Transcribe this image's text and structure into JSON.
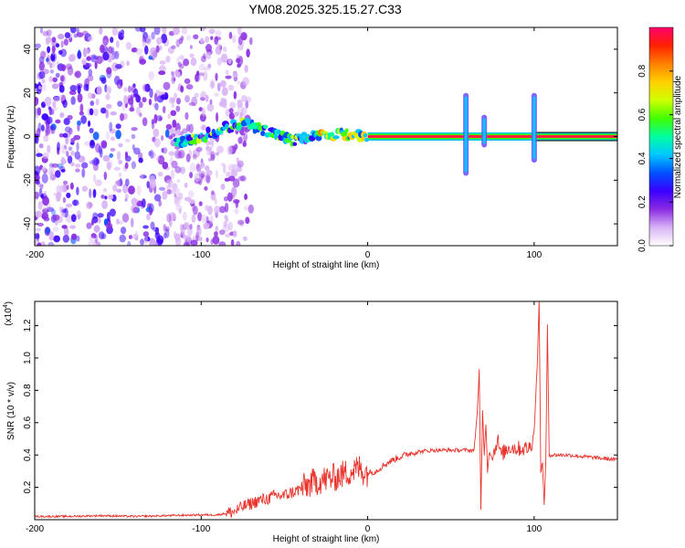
{
  "figure_title": "YM08.2025.325.15.27.C33",
  "chart_data": [
    {
      "type": "heatmap",
      "title": "YM08.2025.325.15.27.C33",
      "xlabel": "Height of straight line (km)",
      "ylabel": "Frequency (Hz)",
      "xlim": [
        -200,
        150
      ],
      "ylim": [
        -50,
        50
      ],
      "xticks": [
        -200,
        -100,
        0,
        100
      ],
      "xtick_labels": [
        "-200",
        "-100",
        "0",
        "100"
      ],
      "yticks": [
        -40,
        -20,
        0,
        20,
        40
      ],
      "ytick_labels": [
        "-40",
        "-20",
        "0",
        "20",
        "40"
      ],
      "colorbar": {
        "label": "Normalized spectral amplitude",
        "range": [
          0,
          1
        ],
        "ticks": [
          0,
          0.2,
          0.4,
          0.6,
          0.8
        ],
        "tick_labels": [
          "0.0",
          "0.2",
          "0.4",
          "0.6",
          "0.8"
        ],
        "colors": [
          "#ffffff",
          "#d9b3f5",
          "#8a2be2",
          "#3a00ff",
          "#0050ff",
          "#00c8ff",
          "#00ffa0",
          "#40ff00",
          "#d0ff00",
          "#ffd000",
          "#ff8000",
          "#ff2000",
          "#ff0070"
        ]
      },
      "features": [
        {
          "name": "diffuse noise",
          "x_range": [
            -200,
            -80
          ],
          "freq_range": [
            -50,
            50
          ],
          "amplitude": 0.15
        },
        {
          "name": "central track",
          "x": [
            -115,
            -100,
            -85,
            -75,
            -65,
            -55,
            -45,
            -35,
            -25,
            -15,
            -8,
            0,
            150
          ],
          "freq": [
            -3,
            0,
            4,
            6,
            4,
            1,
            -2,
            0,
            0,
            1,
            1,
            0,
            0
          ]
        },
        {
          "name": "spike",
          "x": 59,
          "freq_range": [
            -18,
            20
          ]
        },
        {
          "name": "spike",
          "x": 70,
          "freq_range": [
            -5,
            10
          ]
        },
        {
          "name": "spike",
          "x": 100,
          "freq_range": [
            -12,
            20
          ]
        }
      ]
    },
    {
      "type": "line",
      "title": "",
      "xlabel": "Height of straight line (km)",
      "ylabel": "SNR (10 * v/v)",
      "scale_label": "(x10",
      "scale_exponent": "4",
      "xlim": [
        -200,
        150
      ],
      "ylim": [
        0,
        1.35
      ],
      "xticks": [
        -200,
        -100,
        0,
        100
      ],
      "xtick_labels": [
        "-200",
        "-100",
        "0",
        "100"
      ],
      "yticks": [
        0.2,
        0.4,
        0.6,
        0.8,
        1.0,
        1.2
      ],
      "ytick_labels": [
        "0.2",
        "0.4",
        "0.6",
        "0.8",
        "1.0",
        "1.2"
      ],
      "color": "#e8342c",
      "series": [
        {
          "name": "SNR",
          "x": [
            -200,
            -180,
            -160,
            -140,
            -120,
            -100,
            -90,
            -80,
            -75,
            -70,
            -65,
            -60,
            -55,
            -50,
            -45,
            -40,
            -35,
            -30,
            -25,
            -20,
            -15,
            -10,
            -7,
            -5,
            -3,
            0,
            5,
            10,
            15,
            20,
            25,
            30,
            40,
            50,
            60,
            64,
            66,
            67,
            68,
            69,
            70,
            71,
            72,
            73,
            75,
            78,
            80,
            85,
            90,
            95,
            98,
            100,
            102,
            103,
            104,
            105,
            106,
            107,
            108,
            109,
            110,
            112,
            120,
            130,
            140,
            150
          ],
          "y": [
            0.02,
            0.02,
            0.025,
            0.02,
            0.025,
            0.03,
            0.03,
            0.05,
            0.08,
            0.1,
            0.12,
            0.13,
            0.15,
            0.15,
            0.17,
            0.19,
            0.22,
            0.24,
            0.25,
            0.26,
            0.28,
            0.3,
            0.31,
            0.32,
            0.3,
            0.29,
            0.3,
            0.34,
            0.37,
            0.39,
            0.41,
            0.42,
            0.43,
            0.43,
            0.43,
            0.43,
            0.7,
            0.93,
            0.05,
            0.67,
            0.4,
            0.6,
            0.3,
            0.42,
            0.38,
            0.5,
            0.4,
            0.45,
            0.44,
            0.44,
            0.45,
            0.55,
            1.0,
            1.35,
            0.3,
            0.35,
            0.1,
            0.35,
            1.2,
            0.4,
            0.4,
            0.4,
            0.4,
            0.39,
            0.38,
            0.37
          ]
        }
      ]
    }
  ]
}
